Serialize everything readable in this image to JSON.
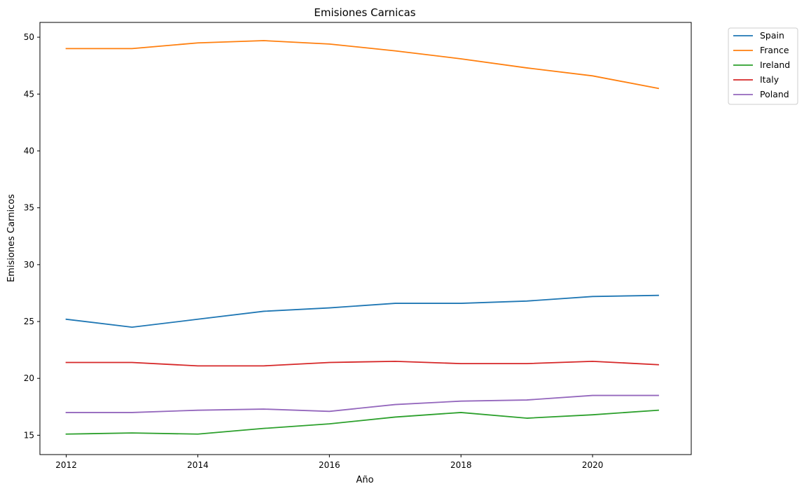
{
  "chart_data": {
    "type": "line",
    "title": "Emisiones Carnicas",
    "xlabel": "Año",
    "ylabel": "Emisiones Carnicos",
    "xlim": [
      2011.6,
      2021.5
    ],
    "ylim": [
      13.3,
      51.3
    ],
    "xticks": [
      2012,
      2014,
      2016,
      2018,
      2020
    ],
    "yticks": [
      15,
      20,
      25,
      30,
      35,
      40,
      45,
      50
    ],
    "grid": false,
    "legend_position": "outside-top-right",
    "x": [
      2012,
      2013,
      2014,
      2015,
      2016,
      2017,
      2018,
      2019,
      2020,
      2021
    ],
    "series": [
      {
        "name": "Spain",
        "color": "#1f77b4",
        "values": [
          25.2,
          24.5,
          25.2,
          25.9,
          26.2,
          26.6,
          26.6,
          26.8,
          27.2,
          27.3
        ]
      },
      {
        "name": "France",
        "color": "#ff7f0e",
        "values": [
          49.0,
          49.0,
          49.5,
          49.7,
          49.4,
          48.8,
          48.1,
          47.3,
          46.6,
          45.5
        ]
      },
      {
        "name": "Ireland",
        "color": "#2ca02c",
        "values": [
          15.1,
          15.2,
          15.1,
          15.6,
          16.0,
          16.6,
          17.0,
          16.5,
          16.8,
          17.2
        ]
      },
      {
        "name": "Italy",
        "color": "#d62728",
        "values": [
          21.4,
          21.4,
          21.1,
          21.1,
          21.4,
          21.5,
          21.3,
          21.3,
          21.5,
          21.2
        ]
      },
      {
        "name": "Poland",
        "color": "#9467bd",
        "values": [
          17.0,
          17.0,
          17.2,
          17.3,
          17.1,
          17.7,
          18.0,
          18.1,
          18.5,
          18.5
        ]
      }
    ]
  }
}
